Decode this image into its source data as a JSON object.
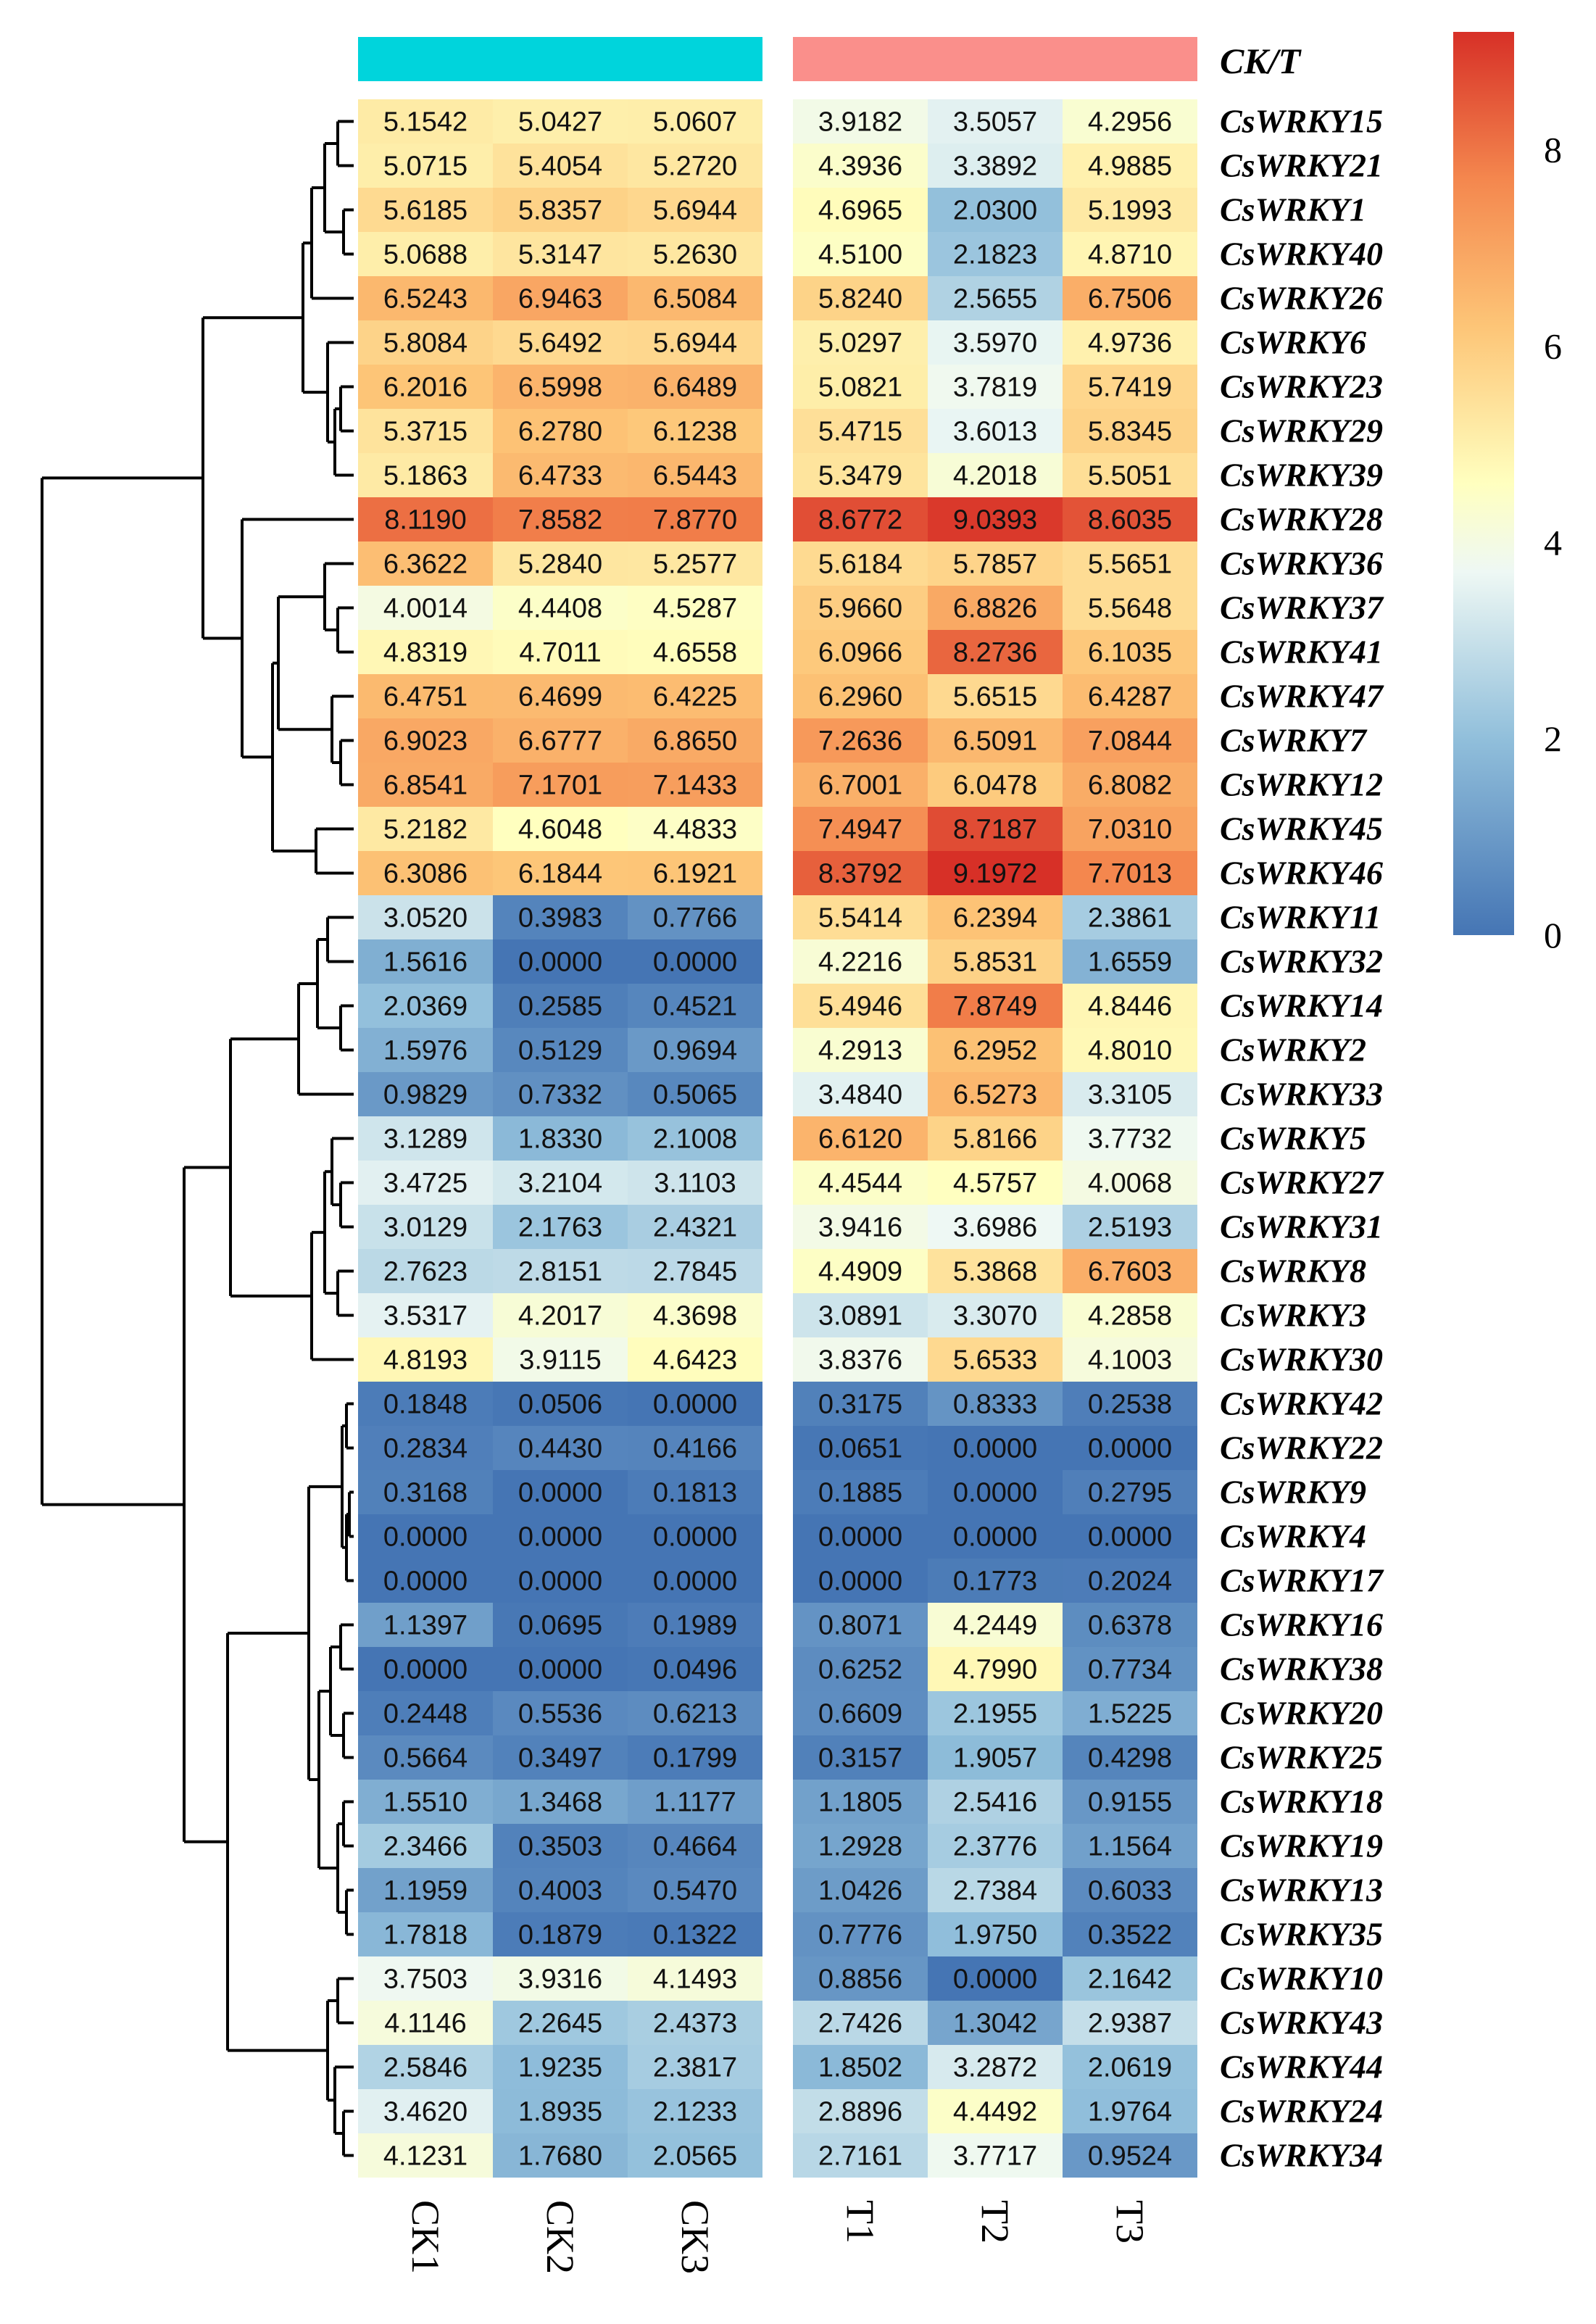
{
  "chart_data": {
    "type": "heatmap",
    "title": "CK/T",
    "columns": [
      "CK1",
      "CK2",
      "CK3",
      "T1",
      "T2",
      "T3"
    ],
    "groups": [
      {
        "name": "CK",
        "color": "#00d4dc"
      },
      {
        "name": "T",
        "color": "#fa8f8b"
      }
    ],
    "rows": [
      "CsWRKY15",
      "CsWRKY21",
      "CsWRKY1",
      "CsWRKY40",
      "CsWRKY26",
      "CsWRKY6",
      "CsWRKY23",
      "CsWRKY29",
      "CsWRKY39",
      "CsWRKY28",
      "CsWRKY36",
      "CsWRKY37",
      "CsWRKY41",
      "CsWRKY47",
      "CsWRKY7",
      "CsWRKY12",
      "CsWRKY45",
      "CsWRKY46",
      "CsWRKY11",
      "CsWRKY32",
      "CsWRKY14",
      "CsWRKY2",
      "CsWRKY33",
      "CsWRKY5",
      "CsWRKY27",
      "CsWRKY31",
      "CsWRKY8",
      "CsWRKY3",
      "CsWRKY30",
      "CsWRKY42",
      "CsWRKY22",
      "CsWRKY9",
      "CsWRKY4",
      "CsWRKY17",
      "CsWRKY16",
      "CsWRKY38",
      "CsWRKY20",
      "CsWRKY25",
      "CsWRKY18",
      "CsWRKY19",
      "CsWRKY13",
      "CsWRKY35",
      "CsWRKY10",
      "CsWRKY43",
      "CsWRKY44",
      "CsWRKY24",
      "CsWRKY34"
    ],
    "values": [
      [
        "5.1542",
        "5.0427",
        "5.0607",
        "3.9182",
        "3.5057",
        "4.2956"
      ],
      [
        "5.0715",
        "5.4054",
        "5.2720",
        "4.3936",
        "3.3892",
        "4.9885"
      ],
      [
        "5.6185",
        "5.8357",
        "5.6944",
        "4.6965",
        "2.0300",
        "5.1993"
      ],
      [
        "5.0688",
        "5.3147",
        "5.2630",
        "4.5100",
        "2.1823",
        "4.8710"
      ],
      [
        "6.5243",
        "6.9463",
        "6.5084",
        "5.8240",
        "2.5655",
        "6.7506"
      ],
      [
        "5.8084",
        "5.6492",
        "5.6944",
        "5.0297",
        "3.5970",
        "4.9736"
      ],
      [
        "6.2016",
        "6.5998",
        "6.6489",
        "5.0821",
        "3.7819",
        "5.7419"
      ],
      [
        "5.3715",
        "6.2780",
        "6.1238",
        "5.4715",
        "3.6013",
        "5.8345"
      ],
      [
        "5.1863",
        "6.4733",
        "6.5443",
        "5.3479",
        "4.2018",
        "5.5051"
      ],
      [
        "8.1190",
        "7.8582",
        "7.8770",
        "8.6772",
        "9.0393",
        "8.6035"
      ],
      [
        "6.3622",
        "5.2840",
        "5.2577",
        "5.6184",
        "5.7857",
        "5.5651"
      ],
      [
        "4.0014",
        "4.4408",
        "4.5287",
        "5.9660",
        "6.8826",
        "5.5648"
      ],
      [
        "4.8319",
        "4.7011",
        "4.6558",
        "6.0966",
        "8.2736",
        "6.1035"
      ],
      [
        "6.4751",
        "6.4699",
        "6.4225",
        "6.2960",
        "5.6515",
        "6.4287"
      ],
      [
        "6.9023",
        "6.6777",
        "6.8650",
        "7.2636",
        "6.5091",
        "7.0844"
      ],
      [
        "6.8541",
        "7.1701",
        "7.1433",
        "6.7001",
        "6.0478",
        "6.8082"
      ],
      [
        "5.2182",
        "4.6048",
        "4.4833",
        "7.4947",
        "8.7187",
        "7.0310"
      ],
      [
        "6.3086",
        "6.1844",
        "6.1921",
        "8.3792",
        "9.1972",
        "7.7013"
      ],
      [
        "3.0520",
        "0.3983",
        "0.7766",
        "5.5414",
        "6.2394",
        "2.3861"
      ],
      [
        "1.5616",
        "0.0000",
        "0.0000",
        "4.2216",
        "5.8531",
        "1.6559"
      ],
      [
        "2.0369",
        "0.2585",
        "0.4521",
        "5.4946",
        "7.8749",
        "4.8446"
      ],
      [
        "1.5976",
        "0.5129",
        "0.9694",
        "4.2913",
        "6.2952",
        "4.8010"
      ],
      [
        "0.9829",
        "0.7332",
        "0.5065",
        "3.4840",
        "6.5273",
        "3.3105"
      ],
      [
        "3.1289",
        "1.8330",
        "2.1008",
        "6.6120",
        "5.8166",
        "3.7732"
      ],
      [
        "3.4725",
        "3.2104",
        "3.1103",
        "4.4544",
        "4.5757",
        "4.0068"
      ],
      [
        "3.0129",
        "2.1763",
        "2.4321",
        "3.9416",
        "3.6986",
        "2.5193"
      ],
      [
        "2.7623",
        "2.8151",
        "2.7845",
        "4.4909",
        "5.3868",
        "6.7603"
      ],
      [
        "3.5317",
        "4.2017",
        "4.3698",
        "3.0891",
        "3.3070",
        "4.2858"
      ],
      [
        "4.8193",
        "3.9115",
        "4.6423",
        "3.8376",
        "5.6533",
        "4.1003"
      ],
      [
        "0.1848",
        "0.0506",
        "0.0000",
        "0.3175",
        "0.8333",
        "0.2538"
      ],
      [
        "0.2834",
        "0.4430",
        "0.4166",
        "0.0651",
        "0.0000",
        "0.0000"
      ],
      [
        "0.3168",
        "0.0000",
        "0.1813",
        "0.1885",
        "0.0000",
        "0.2795"
      ],
      [
        "0.0000",
        "0.0000",
        "0.0000",
        "0.0000",
        "0.0000",
        "0.0000"
      ],
      [
        "0.0000",
        "0.0000",
        "0.0000",
        "0.0000",
        "0.1773",
        "0.2024"
      ],
      [
        "1.1397",
        "0.0695",
        "0.1989",
        "0.8071",
        "4.2449",
        "0.6378"
      ],
      [
        "0.0000",
        "0.0000",
        "0.0496",
        "0.6252",
        "4.7990",
        "0.7734"
      ],
      [
        "0.2448",
        "0.5536",
        "0.6213",
        "0.6609",
        "2.1955",
        "1.5225"
      ],
      [
        "0.5664",
        "0.3497",
        "0.1799",
        "0.3157",
        "1.9057",
        "0.4298"
      ],
      [
        "1.5510",
        "1.3468",
        "1.1177",
        "1.1805",
        "2.5416",
        "0.9155"
      ],
      [
        "2.3466",
        "0.3503",
        "0.4664",
        "1.2928",
        "2.3776",
        "1.1564"
      ],
      [
        "1.1959",
        "0.4003",
        "0.5470",
        "1.0426",
        "2.7384",
        "0.6033"
      ],
      [
        "1.7818",
        "0.1879",
        "0.1322",
        "0.7776",
        "1.9750",
        "0.3522"
      ],
      [
        "3.7503",
        "3.9316",
        "4.1493",
        "0.8856",
        "0.0000",
        "2.1642"
      ],
      [
        "4.1146",
        "2.2645",
        "2.4373",
        "2.7426",
        "1.3042",
        "2.9387"
      ],
      [
        "2.5846",
        "1.9235",
        "2.3817",
        "1.8502",
        "3.2872",
        "2.0619"
      ],
      [
        "3.4620",
        "1.8935",
        "2.1233",
        "2.8896",
        "4.4492",
        "1.9764"
      ],
      [
        "4.1231",
        "1.7680",
        "2.0565",
        "2.7161",
        "3.7717",
        "0.9524"
      ]
    ],
    "color_scale": {
      "range": [
        0,
        9.2
      ],
      "ticks": [
        "0",
        "2",
        "4",
        "6",
        "8"
      ],
      "stops": [
        {
          "v": 0,
          "color": "#4575b4"
        },
        {
          "v": 2,
          "color": "#91bfdb"
        },
        {
          "v": 3.7,
          "color": "#eef8f4"
        },
        {
          "v": 4.6,
          "color": "#ffffbf"
        },
        {
          "v": 6.2,
          "color": "#fdc577"
        },
        {
          "v": 7.7,
          "color": "#f4874e"
        },
        {
          "v": 9.2,
          "color": "#d73027"
        }
      ]
    },
    "legend_position": "top-right",
    "row_dendrogram": true
  }
}
